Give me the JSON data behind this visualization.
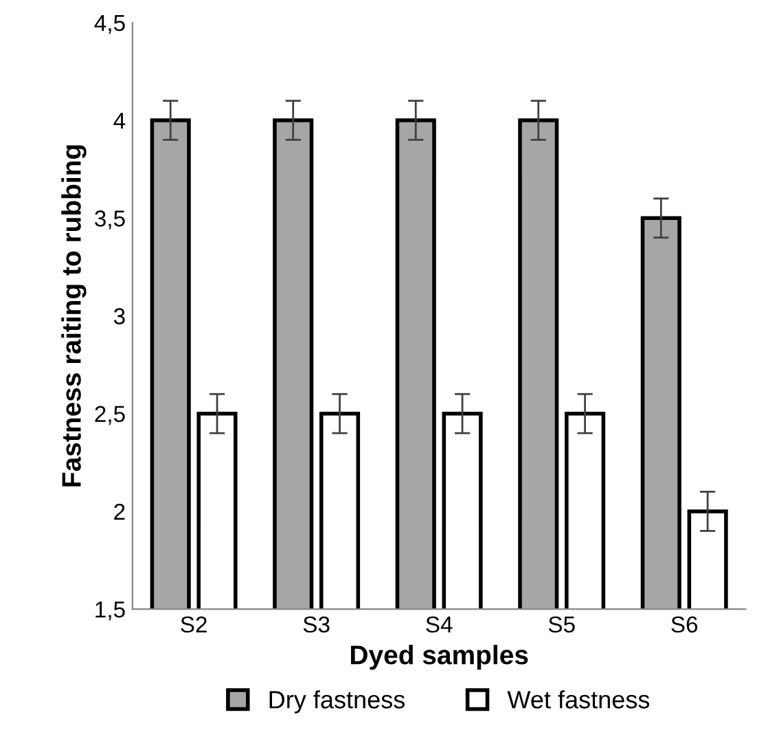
{
  "chart_data": {
    "type": "bar",
    "xlabel": "Dyed samples",
    "ylabel": "Fastness raiting to rubbing",
    "categories": [
      "S2",
      "S3",
      "S4",
      "S5",
      "S6"
    ],
    "series": [
      {
        "name": "Dry fastness",
        "color": "#a6a6a6",
        "values": [
          4,
          4,
          4,
          4,
          3.5
        ],
        "errors": [
          0.1,
          0.1,
          0.1,
          0.1,
          0.1
        ]
      },
      {
        "name": "Wet fastness",
        "color": "#ffffff",
        "values": [
          2.5,
          2.5,
          2.5,
          2.5,
          2
        ],
        "errors": [
          0.1,
          0.1,
          0.1,
          0.1,
          0.1
        ]
      }
    ],
    "ylim": [
      1.5,
      4.5
    ],
    "yticks": [
      {
        "value": 1.5,
        "label": "1,5"
      },
      2,
      {
        "value": 2.5,
        "label": "2,5"
      },
      3,
      {
        "value": 3.5,
        "label": "3,5"
      },
      4,
      {
        "value": 4.5,
        "label": "4,5"
      }
    ],
    "grid": false,
    "legend": "bottom"
  }
}
